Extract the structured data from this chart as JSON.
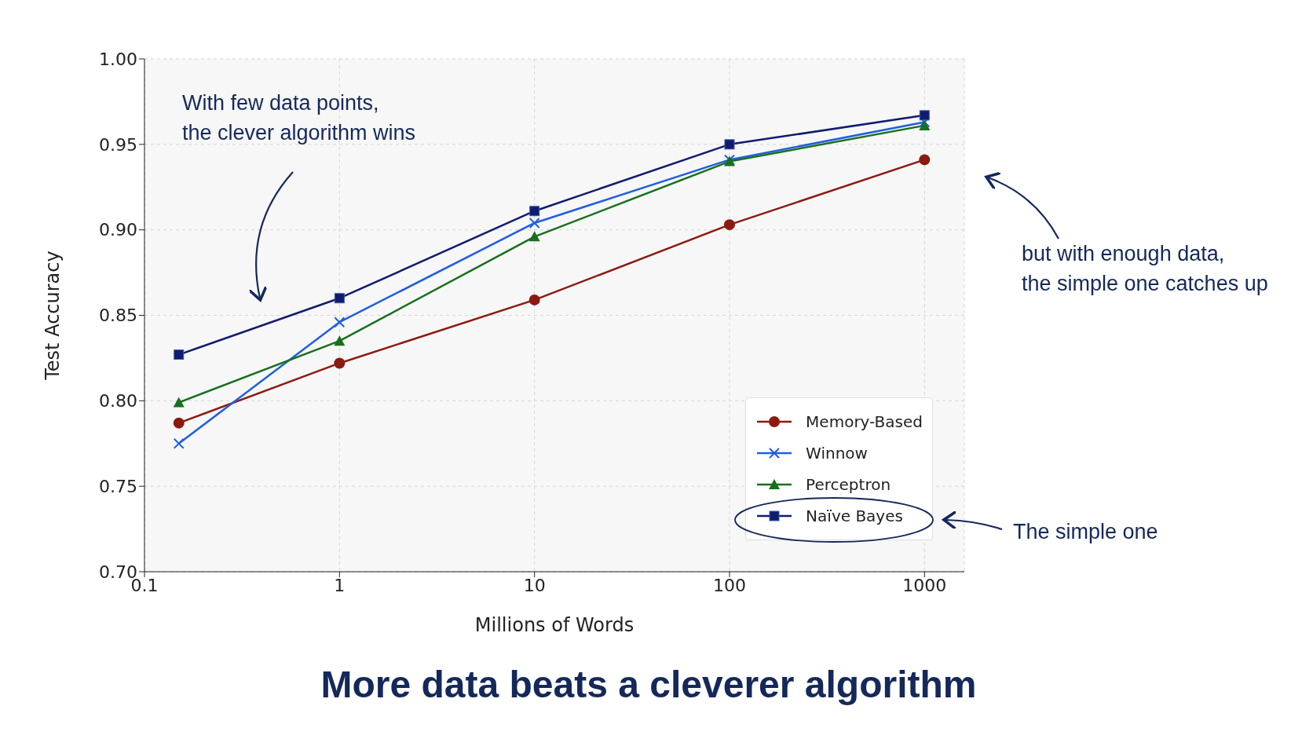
{
  "chart_data": {
    "type": "line",
    "title": "More data beats a cleverer algorithm",
    "xlabel": "Millions of Words",
    "ylabel": "Test Accuracy",
    "x": [
      0.15,
      1,
      10,
      100,
      1000
    ],
    "series": [
      {
        "name": "Memory-Based",
        "color": "#8b1a10",
        "marker": "circle",
        "values": [
          0.787,
          0.822,
          0.859,
          0.903,
          0.941
        ]
      },
      {
        "name": "Winnow",
        "color": "#1f5fe0",
        "marker": "cross",
        "values": [
          0.775,
          0.846,
          0.904,
          0.941,
          0.963
        ]
      },
      {
        "name": "Perceptron",
        "color": "#17701c",
        "marker": "triangle",
        "values": [
          0.799,
          0.835,
          0.896,
          0.94,
          0.961
        ]
      },
      {
        "name": "Naïve Bayes",
        "color": "#101c6e",
        "marker": "square",
        "values": [
          0.827,
          0.86,
          0.911,
          0.95,
          0.967
        ]
      }
    ],
    "log": "x",
    "xlim": [
      0.1,
      1600
    ],
    "xticks": [
      0.1,
      1,
      10,
      100,
      1000
    ],
    "ylim": [
      0.7,
      1.0
    ],
    "yticks": [
      {
        "value": 0.7,
        "label": "0.70"
      },
      {
        "value": 0.75,
        "label": "0.75"
      },
      {
        "value": 0.8,
        "label": "0.80"
      },
      {
        "value": 0.85,
        "label": "0.85"
      },
      {
        "value": 0.9,
        "label": "0.90"
      },
      {
        "value": 0.95,
        "label": "0.95"
      },
      {
        "value": 1.0,
        "label": "1.00"
      }
    ],
    "grid": true,
    "legend": "bottom right",
    "line_style": "solid",
    "annotations": [
      "With few data points,\nthe clever algorithm wins",
      "but with enough data,\nthe simple one catches up",
      "The simple one"
    ]
  }
}
